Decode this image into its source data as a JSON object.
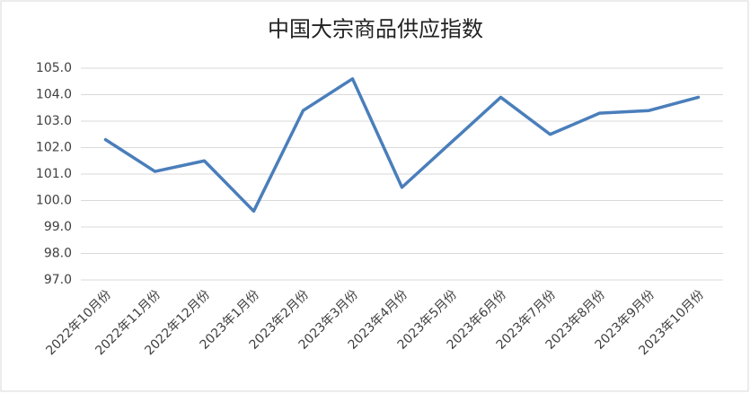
{
  "chart_data": {
    "type": "line",
    "title": "中国大宗商品供应指数",
    "categories": [
      "2022年10月份",
      "2022年11月份",
      "2022年12月份",
      "2023年1月份",
      "2023年2月份",
      "2023年3月份",
      "2023年4月份",
      "2023年5月份",
      "2023年6月份",
      "2023年7月份",
      "2023年8月份",
      "2023年9月份",
      "2023年10月份"
    ],
    "values": [
      102.3,
      101.1,
      101.5,
      99.6,
      103.4,
      104.6,
      100.5,
      102.2,
      103.9,
      102.5,
      103.3,
      103.4,
      103.9
    ],
    "color": "#4a7ebb",
    "ylim": [
      97,
      105
    ],
    "yticks": [
      {
        "value": 97,
        "label": "97.0"
      },
      {
        "value": 98,
        "label": "98.0"
      },
      {
        "value": 99,
        "label": "99.0"
      },
      {
        "value": 100,
        "label": "100.0"
      },
      {
        "value": 101,
        "label": "101.0"
      },
      {
        "value": 102,
        "label": "102.0"
      },
      {
        "value": 103,
        "label": "103.0"
      },
      {
        "value": 104,
        "label": "104.0"
      },
      {
        "value": 105,
        "label": "105.0"
      }
    ],
    "grid": true
  }
}
